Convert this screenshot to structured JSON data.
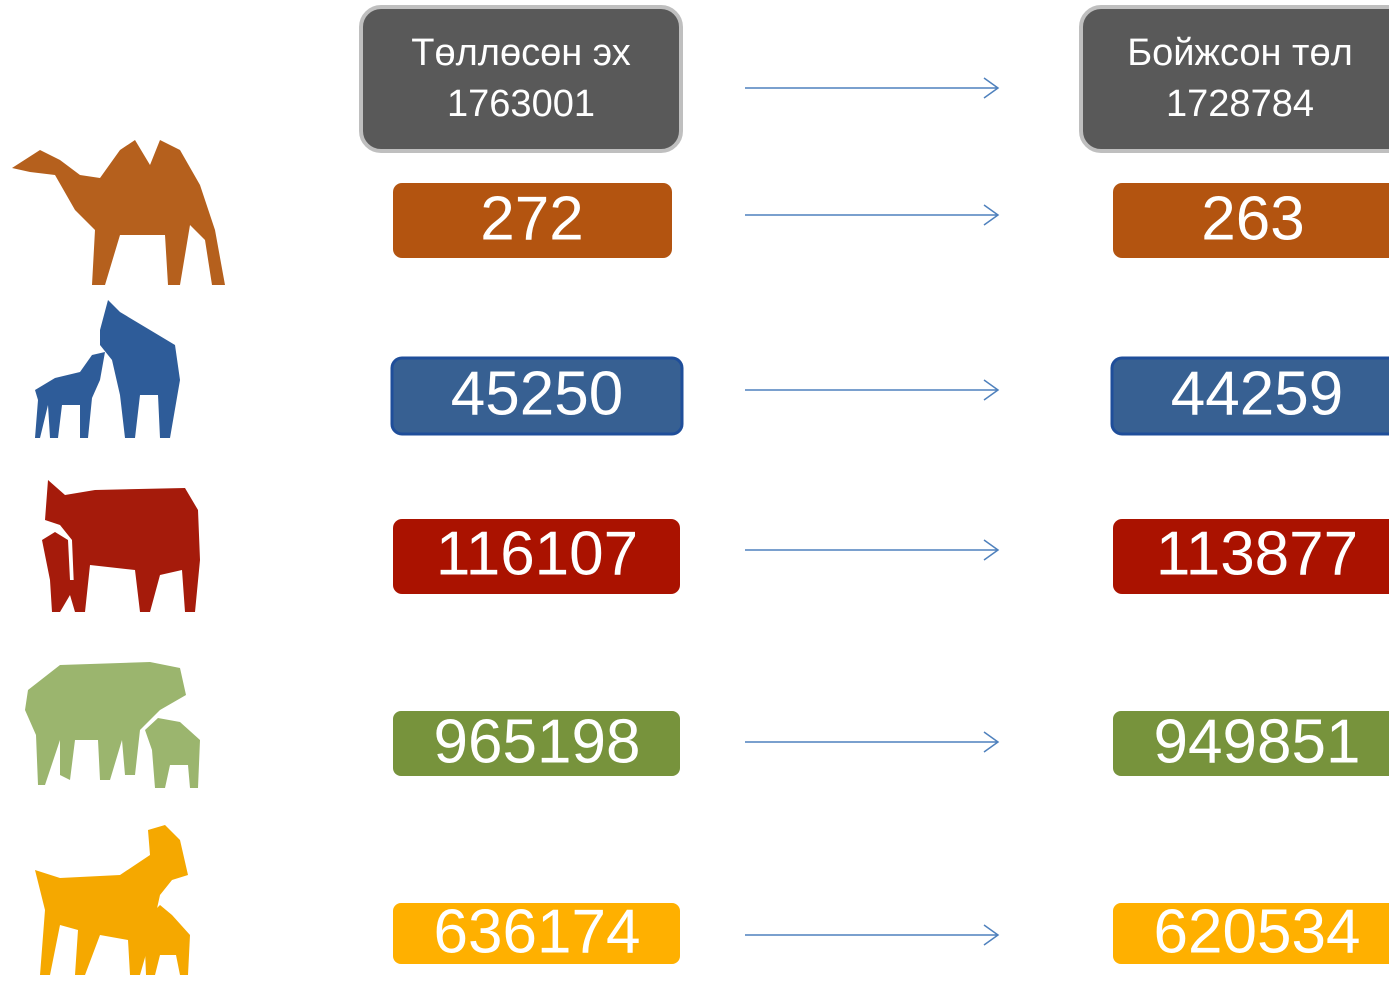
{
  "header": {
    "left": {
      "label": "Төллөсөн эх",
      "value": 1763001
    },
    "right": {
      "label": "Бойжсон төл",
      "value": 1728784
    }
  },
  "rows": [
    {
      "born": 272,
      "raised": 263
    },
    {
      "born": 45250,
      "raised": 44259
    },
    {
      "born": 116107,
      "raised": 113877
    },
    {
      "born": 965198,
      "raised": 949851
    },
    {
      "born": 636174,
      "raised": 620534
    }
  ]
}
